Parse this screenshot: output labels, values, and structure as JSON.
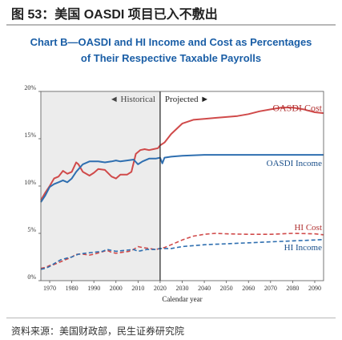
{
  "figure": {
    "title": "图 53：美国 OASDI 项目已入不敷出",
    "source": "资料来源：美国财政部，民生证券研究院"
  },
  "chart_data": {
    "type": "line",
    "title": "Chart B—OASDI and HI Income and Cost as Percentages",
    "subtitle": "of Their Respective Taxable Payrolls",
    "xlabel": "Calendar year",
    "ylabel": "",
    "xlim": [
      1966,
      2094
    ],
    "ylim": [
      0,
      20
    ],
    "xticks": [
      1970,
      1980,
      1990,
      2000,
      2010,
      2020,
      2030,
      2040,
      2050,
      2060,
      2070,
      2080,
      2090
    ],
    "yticks": [
      0,
      5,
      10,
      15,
      20
    ],
    "yticklabels": [
      "0%",
      "5%",
      "10%",
      "15%",
      "20%"
    ],
    "grid": false,
    "divider_year": 2020,
    "historical_label": "◄ Historical",
    "projected_label": "Projected ►",
    "series_labels": {
      "oasdi_cost": "OASDI Cost",
      "oasdi_income": "OASDI Income",
      "hi_cost": "HI Cost",
      "hi_income": "HI Income"
    },
    "colors": {
      "cost": "#d04a4a",
      "income": "#2f6fb0",
      "historical_bg": "#ececec",
      "text_red": "#b03030",
      "text_blue": "#1a4f8a"
    },
    "series": [
      {
        "id": "oasdi_cost",
        "name": "OASDI Cost",
        "style": "solid",
        "points": [
          [
            1966,
            8.5
          ],
          [
            1968,
            9.3
          ],
          [
            1970,
            10.0
          ],
          [
            1972,
            10.8
          ],
          [
            1974,
            11.0
          ],
          [
            1976,
            11.6
          ],
          [
            1978,
            11.3
          ],
          [
            1980,
            11.5
          ],
          [
            1982,
            12.5
          ],
          [
            1983,
            12.3
          ],
          [
            1985,
            11.5
          ],
          [
            1988,
            11.1
          ],
          [
            1990,
            11.4
          ],
          [
            1992,
            11.8
          ],
          [
            1995,
            11.7
          ],
          [
            1998,
            11.0
          ],
          [
            2000,
            10.8
          ],
          [
            2002,
            11.2
          ],
          [
            2005,
            11.2
          ],
          [
            2007,
            11.5
          ],
          [
            2009,
            13.4
          ],
          [
            2011,
            13.8
          ],
          [
            2013,
            13.9
          ],
          [
            2015,
            13.8
          ],
          [
            2017,
            13.9
          ],
          [
            2019,
            14.0
          ],
          [
            2020,
            14.3
          ],
          [
            2022,
            14.6
          ],
          [
            2025,
            15.5
          ],
          [
            2030,
            16.6
          ],
          [
            2035,
            17.0
          ],
          [
            2040,
            17.1
          ],
          [
            2045,
            17.2
          ],
          [
            2050,
            17.3
          ],
          [
            2055,
            17.4
          ],
          [
            2060,
            17.6
          ],
          [
            2065,
            17.9
          ],
          [
            2070,
            18.1
          ],
          [
            2075,
            18.3
          ],
          [
            2080,
            18.3
          ],
          [
            2085,
            18.1
          ],
          [
            2090,
            17.8
          ],
          [
            2094,
            17.7
          ]
        ]
      },
      {
        "id": "oasdi_income",
        "name": "OASDI Income",
        "style": "solid",
        "points": [
          [
            1966,
            8.3
          ],
          [
            1968,
            9.0
          ],
          [
            1970,
            9.9
          ],
          [
            1972,
            10.2
          ],
          [
            1974,
            10.4
          ],
          [
            1976,
            10.6
          ],
          [
            1978,
            10.4
          ],
          [
            1980,
            10.8
          ],
          [
            1982,
            11.5
          ],
          [
            1985,
            12.3
          ],
          [
            1988,
            12.6
          ],
          [
            1990,
            12.6
          ],
          [
            1992,
            12.6
          ],
          [
            1995,
            12.5
          ],
          [
            1998,
            12.6
          ],
          [
            2000,
            12.7
          ],
          [
            2002,
            12.6
          ],
          [
            2005,
            12.7
          ],
          [
            2008,
            12.8
          ],
          [
            2010,
            12.3
          ],
          [
            2012,
            12.6
          ],
          [
            2015,
            12.9
          ],
          [
            2018,
            12.9
          ],
          [
            2020,
            13.0
          ],
          [
            2021,
            12.4
          ],
          [
            2022,
            13.0
          ],
          [
            2025,
            13.1
          ],
          [
            2030,
            13.2
          ],
          [
            2040,
            13.3
          ],
          [
            2050,
            13.3
          ],
          [
            2060,
            13.3
          ],
          [
            2070,
            13.3
          ],
          [
            2080,
            13.3
          ],
          [
            2090,
            13.3
          ],
          [
            2094,
            13.3
          ]
        ]
      },
      {
        "id": "hi_cost",
        "name": "HI Cost",
        "style": "dashed",
        "points": [
          [
            1966,
            1.3
          ],
          [
            1968,
            1.4
          ],
          [
            1970,
            1.6
          ],
          [
            1972,
            1.7
          ],
          [
            1975,
            2.0
          ],
          [
            1978,
            2.3
          ],
          [
            1980,
            2.5
          ],
          [
            1982,
            2.8
          ],
          [
            1985,
            2.8
          ],
          [
            1988,
            2.7
          ],
          [
            1990,
            2.8
          ],
          [
            1993,
            3.0
          ],
          [
            1996,
            3.2
          ],
          [
            1998,
            3.0
          ],
          [
            2000,
            2.9
          ],
          [
            2003,
            3.0
          ],
          [
            2006,
            3.1
          ],
          [
            2008,
            3.3
          ],
          [
            2010,
            3.6
          ],
          [
            2012,
            3.5
          ],
          [
            2015,
            3.4
          ],
          [
            2018,
            3.3
          ],
          [
            2020,
            3.4
          ],
          [
            2022,
            3.5
          ],
          [
            2025,
            3.8
          ],
          [
            2030,
            4.3
          ],
          [
            2035,
            4.7
          ],
          [
            2040,
            4.9
          ],
          [
            2045,
            5.0
          ],
          [
            2050,
            4.95
          ],
          [
            2060,
            4.9
          ],
          [
            2070,
            4.9
          ],
          [
            2080,
            5.0
          ],
          [
            2090,
            4.95
          ],
          [
            2094,
            4.85
          ]
        ]
      },
      {
        "id": "hi_income",
        "name": "HI Income",
        "style": "dashed",
        "points": [
          [
            1966,
            1.2
          ],
          [
            1968,
            1.3
          ],
          [
            1970,
            1.5
          ],
          [
            1972,
            1.8
          ],
          [
            1975,
            2.2
          ],
          [
            1978,
            2.4
          ],
          [
            1980,
            2.5
          ],
          [
            1983,
            2.8
          ],
          [
            1986,
            2.9
          ],
          [
            1990,
            3.0
          ],
          [
            1994,
            3.1
          ],
          [
            1996,
            3.3
          ],
          [
            2000,
            3.1
          ],
          [
            2004,
            3.2
          ],
          [
            2008,
            3.3
          ],
          [
            2010,
            3.1
          ],
          [
            2014,
            3.3
          ],
          [
            2018,
            3.3
          ],
          [
            2020,
            3.4
          ],
          [
            2025,
            3.4
          ],
          [
            2030,
            3.6
          ],
          [
            2040,
            3.8
          ],
          [
            2050,
            3.9
          ],
          [
            2060,
            4.0
          ],
          [
            2070,
            4.1
          ],
          [
            2080,
            4.2
          ],
          [
            2090,
            4.3
          ],
          [
            2094,
            4.35
          ]
        ]
      }
    ]
  }
}
